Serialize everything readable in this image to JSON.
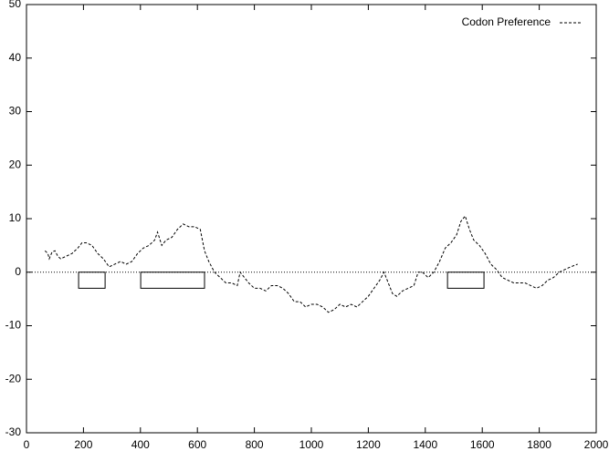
{
  "chart_data": {
    "type": "line",
    "x": [
      65,
      75,
      80,
      90,
      100,
      110,
      120,
      140,
      160,
      180,
      195,
      210,
      230,
      250,
      270,
      290,
      310,
      330,
      350,
      370,
      390,
      410,
      430,
      450,
      460,
      475,
      490,
      510,
      530,
      550,
      570,
      590,
      610,
      625,
      640,
      660,
      680,
      700,
      720,
      740,
      750,
      765,
      780,
      800,
      820,
      840,
      860,
      880,
      900,
      920,
      940,
      960,
      980,
      1000,
      1020,
      1040,
      1060,
      1080,
      1100,
      1120,
      1140,
      1160,
      1180,
      1200,
      1220,
      1240,
      1255,
      1270,
      1285,
      1300,
      1320,
      1340,
      1360,
      1375,
      1390,
      1410,
      1430,
      1450,
      1470,
      1490,
      1510,
      1525,
      1540,
      1555,
      1570,
      1590,
      1610,
      1630,
      1650,
      1670,
      1690,
      1710,
      1730,
      1750,
      1770,
      1790,
      1810,
      1830,
      1850,
      1870,
      1890,
      1910,
      1935
    ],
    "series": [
      {
        "name": "Codon Preference",
        "color": "#000000",
        "values": [
          4,
          3.5,
          2.5,
          3.8,
          4,
          3,
          2.5,
          3,
          3.5,
          4.5,
          5.5,
          5.5,
          5,
          3.5,
          2.5,
          1,
          1.5,
          2,
          1.5,
          2,
          3.5,
          4.5,
          5,
          6,
          7.5,
          5,
          6,
          6.5,
          8,
          9,
          8.5,
          8.5,
          8,
          4,
          2,
          0,
          -1,
          -2,
          -2,
          -2.5,
          0,
          -1,
          -2,
          -3,
          -3,
          -3.5,
          -2.5,
          -2.5,
          -3,
          -4,
          -5.5,
          -5.5,
          -6.5,
          -6,
          -6,
          -6.5,
          -7.5,
          -7,
          -6,
          -6.5,
          -6,
          -6.5,
          -5.5,
          -4.5,
          -3,
          -1.5,
          0,
          -2,
          -4,
          -4.5,
          -3.5,
          -3,
          -2.5,
          0,
          0,
          -1,
          0,
          2,
          4.5,
          5.5,
          7,
          9.5,
          10.5,
          8,
          6,
          5,
          3.5,
          1.5,
          0.5,
          -1,
          -1.5,
          -2,
          -2,
          -2,
          -2.5,
          -3,
          -2.5,
          -1.5,
          -1,
          0,
          0.5,
          1,
          1.5
        ]
      }
    ],
    "boxes": [
      {
        "x0": 183,
        "x1": 276,
        "y0": -3,
        "y1": 0
      },
      {
        "x0": 401,
        "x1": 625,
        "y0": -3,
        "y1": 0
      },
      {
        "x0": 1478,
        "x1": 1606,
        "y0": -3,
        "y1": 0
      }
    ],
    "xlim": [
      0,
      2000
    ],
    "xticks": [
      0,
      200,
      400,
      600,
      800,
      1000,
      1200,
      1400,
      1600,
      1800,
      2000
    ],
    "ylim": [
      -30,
      50
    ],
    "yticks": [
      -30,
      -20,
      -10,
      0,
      10,
      20,
      30,
      40,
      50
    ],
    "legend": "top-right"
  }
}
